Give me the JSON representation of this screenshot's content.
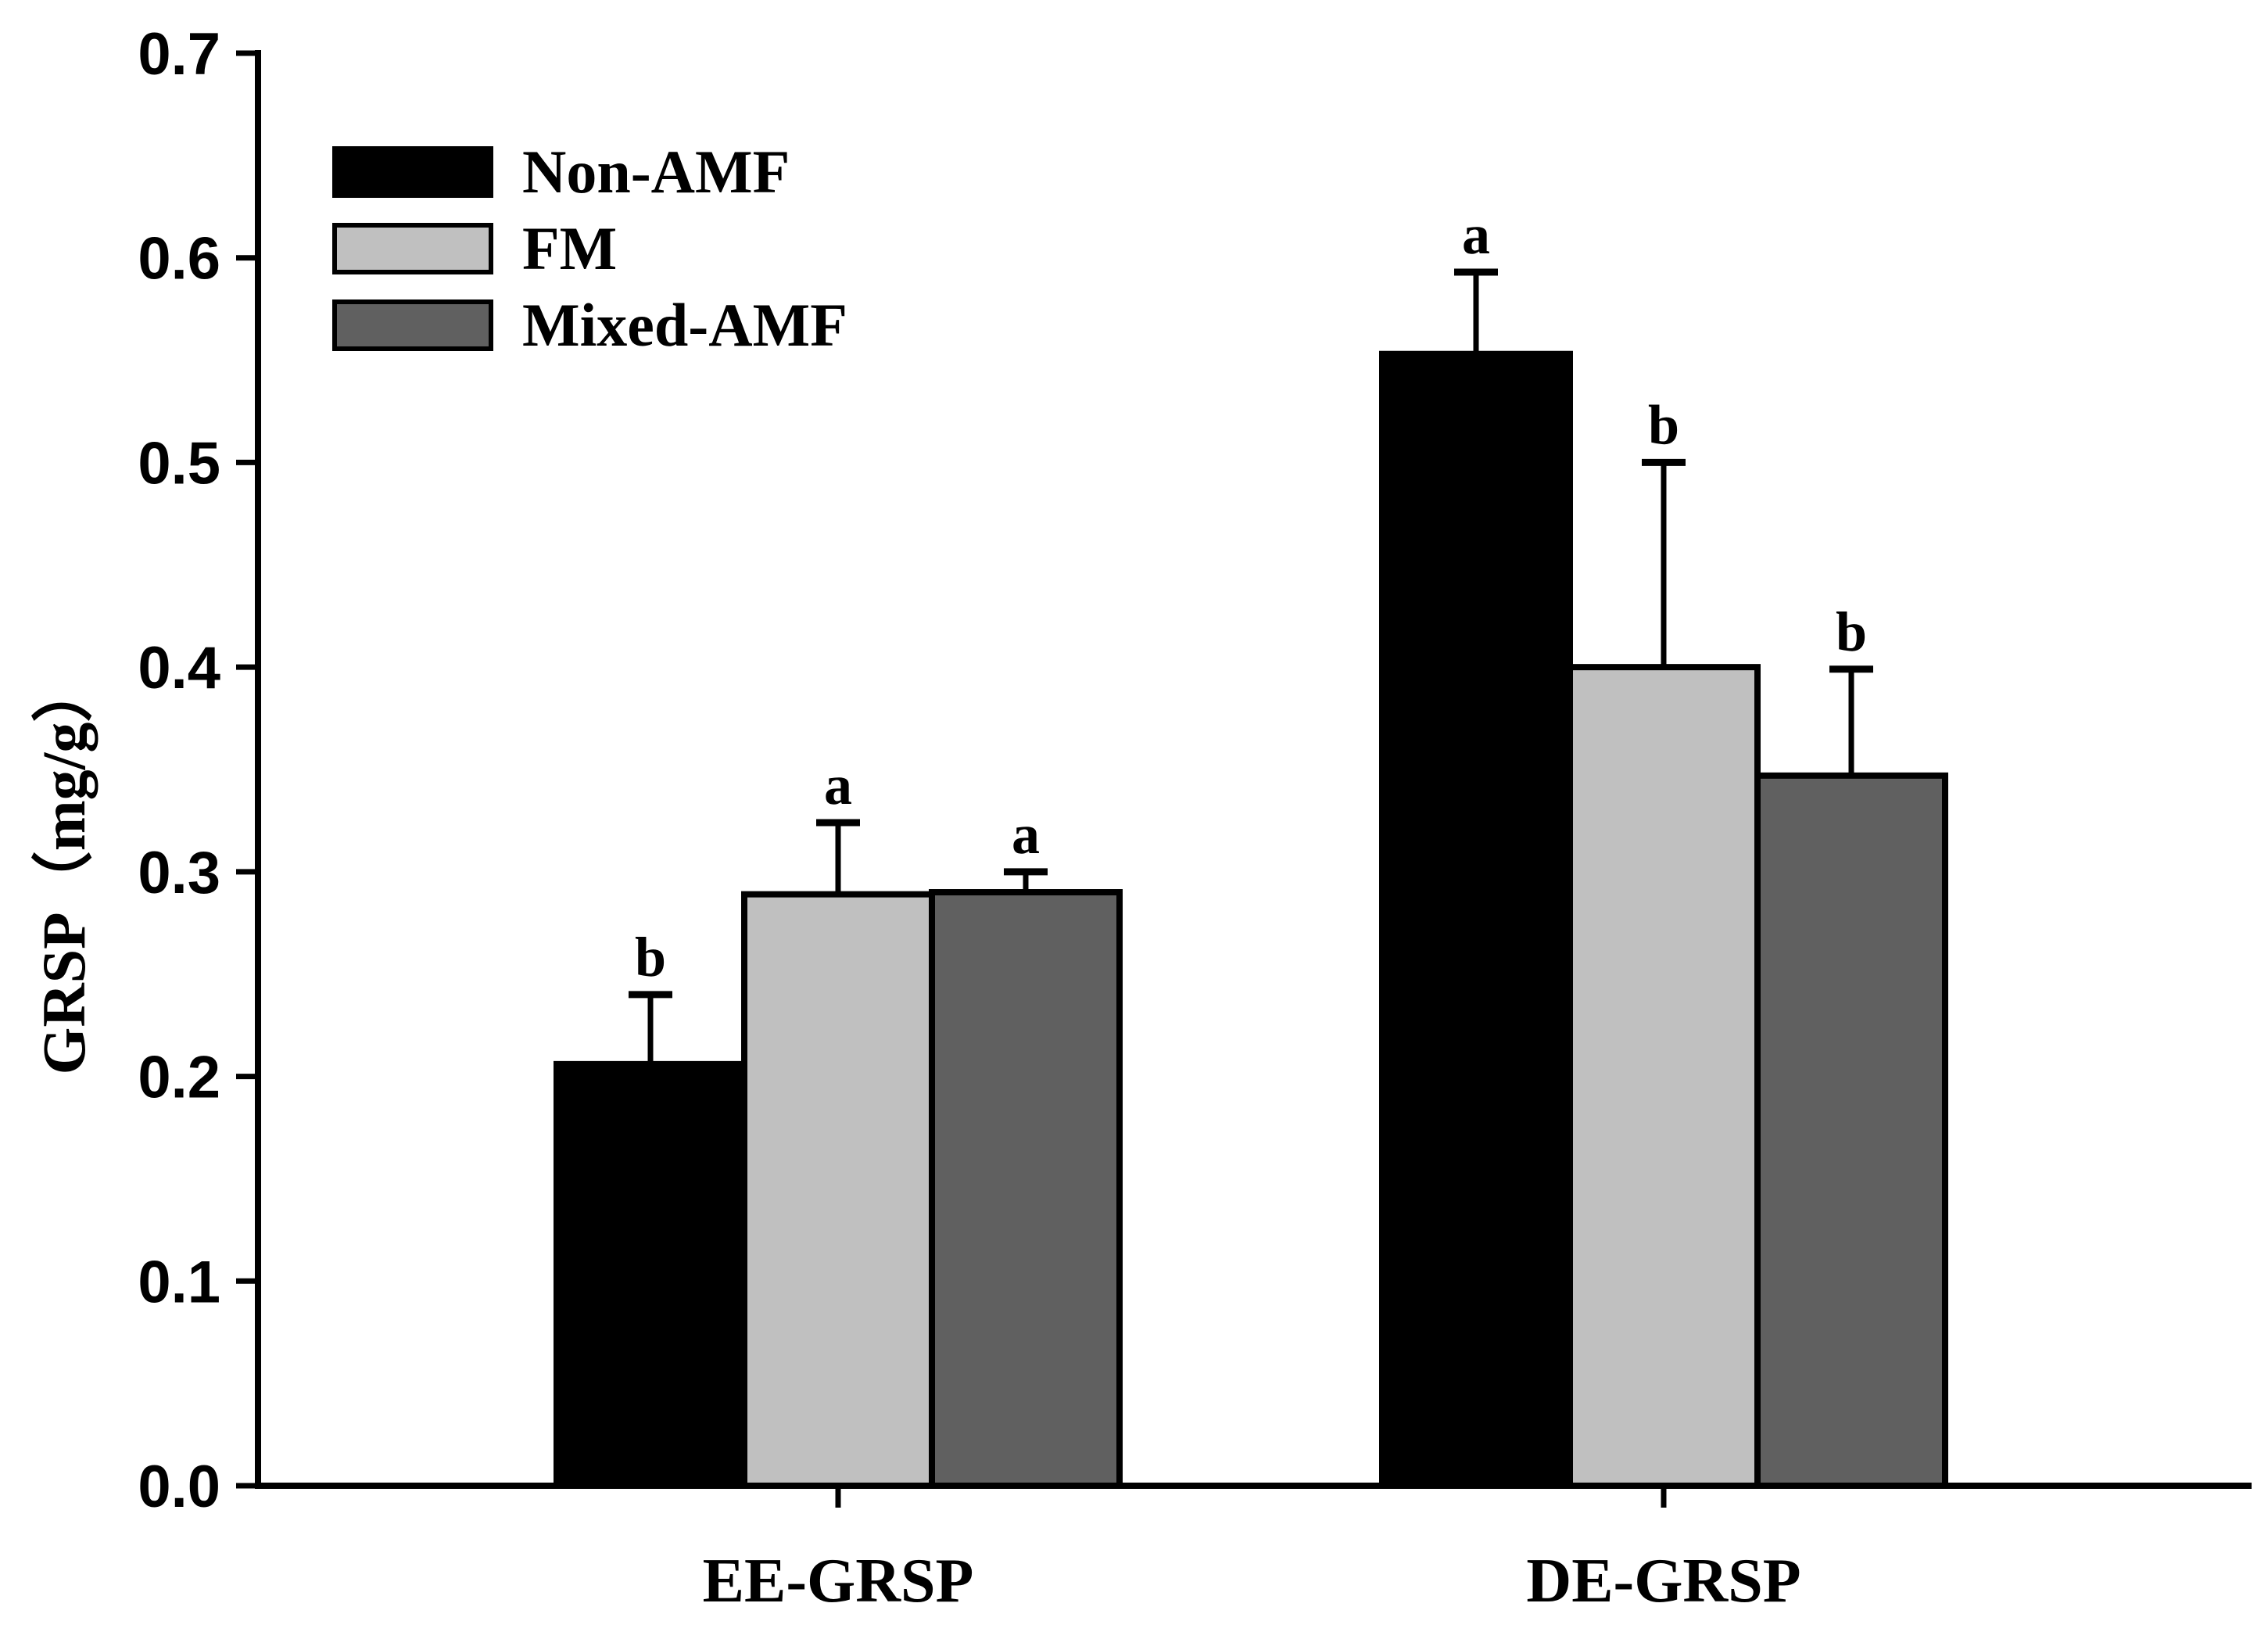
{
  "chart_data": {
    "type": "bar",
    "title": "",
    "xlabel": "",
    "ylabel": "GRSP（mg/g）",
    "ylim": [
      0.0,
      0.7
    ],
    "yticks": [
      0.0,
      0.1,
      0.2,
      0.3,
      0.4,
      0.5,
      0.6,
      0.7
    ],
    "ytick_labels": [
      "0.0",
      "0.1",
      "0.2",
      "0.3",
      "0.4",
      "0.5",
      "0.6",
      "0.7"
    ],
    "categories": [
      "EE-GRSP",
      "DE-GRSP"
    ],
    "legend_position": "top-left",
    "grid": false,
    "series": [
      {
        "name": "Non-AMF",
        "color": "#000000",
        "values": [
          0.206,
          0.553
        ],
        "errors": [
          0.034,
          0.04
        ],
        "significance": [
          "b",
          "a"
        ]
      },
      {
        "name": "FM",
        "color": "#c0c0c0",
        "values": [
          0.289,
          0.4
        ],
        "errors": [
          0.035,
          0.1
        ],
        "significance": [
          "a",
          "b"
        ]
      },
      {
        "name": "Mixed-AMF",
        "color": "#606060",
        "values": [
          0.29,
          0.347
        ],
        "errors": [
          0.01,
          0.052
        ],
        "significance": [
          "a",
          "b"
        ]
      }
    ]
  }
}
